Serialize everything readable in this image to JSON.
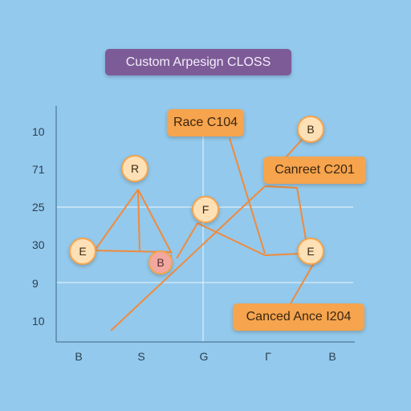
{
  "title": "Custom Arpesign CLOSS",
  "y_labels": [
    "10",
    "71",
    "25",
    "30",
    "9",
    "10"
  ],
  "x_labels": [
    "B",
    "S",
    "G",
    "Γ",
    "B"
  ],
  "callouts": [
    "Race C104",
    "Canreet C201",
    "Canced Ance I204"
  ],
  "nodes": [
    "R",
    "E",
    "B",
    "F",
    "E",
    "B"
  ],
  "colors": {
    "background": "#93c9ec",
    "title_pill": "#7d5b97",
    "callout": "#f6a44d",
    "node_fill": "#fde0b5",
    "edge": "#f08a3c",
    "grid": "#ffffff",
    "axis": "#5b86a8"
  }
}
